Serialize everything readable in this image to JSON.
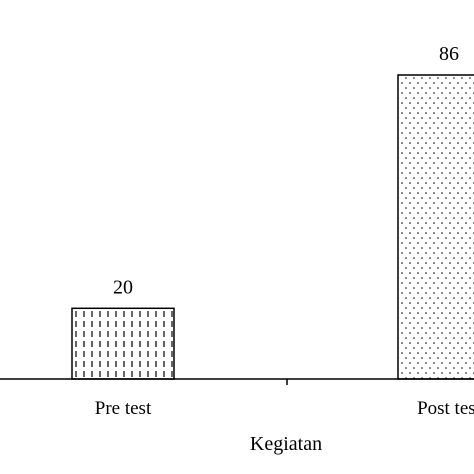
{
  "chart_data": {
    "type": "bar",
    "categories": [
      "Pre test",
      "Post test"
    ],
    "values": [
      20,
      86
    ],
    "data_labels": [
      "20",
      "86"
    ],
    "xlabel": "Kegiatan",
    "ylabel": "",
    "title": "",
    "ylim": [
      0,
      100
    ],
    "grid": false,
    "legend": "none",
    "bar_patterns": [
      "vertical-dashes",
      "dots"
    ],
    "colors": {
      "axis": "#000000",
      "bar_fill": "#ffffff",
      "bar_stroke": "#000000"
    }
  }
}
